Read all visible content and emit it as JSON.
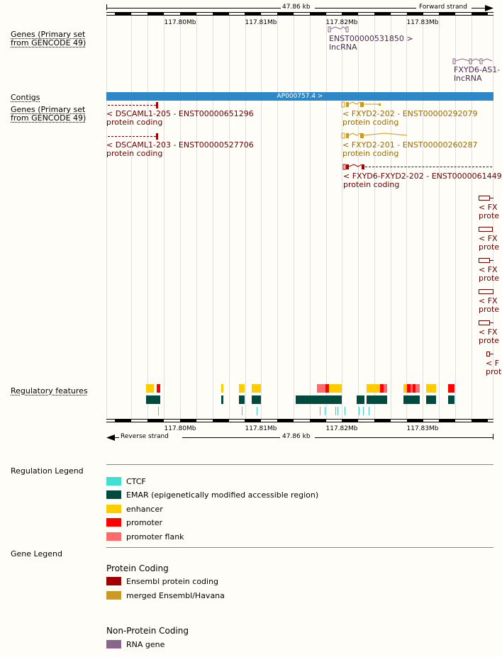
{
  "top_ruler": {
    "length_label": "47.86 kb",
    "strand_label": "Forward strand"
  },
  "bottom_ruler": {
    "length_label": "47.86 kb",
    "strand_label": "Reverse strand"
  },
  "scale_labels": [
    "117.80Mb",
    "117.81Mb",
    "117.82Mb",
    "117.83Mb"
  ],
  "tracks": {
    "genes_top": "Genes (Primary set\nfrom GENCODE 49)",
    "contigs": "Contigs",
    "genes_bottom": "Genes (Primary set\nfrom GENCODE 49)",
    "regulatory": "Regulatory features"
  },
  "contig": {
    "label": "AP000757.4 >"
  },
  "forward_genes": [
    {
      "name": "ENST00000531850 >",
      "biotype": "lncRNA"
    },
    {
      "name": "FXYD6-AS1-",
      "biotype": "lncRNA"
    }
  ],
  "reverse_genes": [
    {
      "name": "< DSCAML1-205 - ENST00000651296",
      "biotype": "protein coding"
    },
    {
      "name": "< DSCAML1-203 - ENST00000527706",
      "biotype": "protein coding"
    },
    {
      "name": "< FXYD2-202 - ENST00000292079",
      "biotype": "protein coding"
    },
    {
      "name": "< FXYD2-201 - ENST00000260287",
      "biotype": "protein coding"
    },
    {
      "name": "< FXYD6-FXYD2-202 - ENST0000061449",
      "biotype": "protein coding"
    }
  ],
  "truncated_genes": [
    {
      "name": "< FX",
      "biotype": "prote"
    },
    {
      "name": "< FX",
      "biotype": "prote"
    },
    {
      "name": "< FX",
      "biotype": "prote"
    },
    {
      "name": "< FX",
      "biotype": "prote"
    },
    {
      "name": "< FX",
      "biotype": "prote"
    },
    {
      "name": "< F",
      "biotype": "prot"
    }
  ],
  "legend": {
    "regulation_title": "Regulation Legend",
    "regulation_items": [
      {
        "label": "CTCF",
        "color": "#40e0d0"
      },
      {
        "label": "EMAR (epigenetically modified accessible region)",
        "color": "#004b3d"
      },
      {
        "label": "enhancer",
        "color": "#ffcc00"
      },
      {
        "label": "promoter",
        "color": "#ff0000"
      },
      {
        "label": "promoter flank",
        "color": "#ff6a6a"
      }
    ],
    "gene_title": "Gene Legend",
    "protein_coding_title": "Protein Coding",
    "protein_items": [
      {
        "label": "Ensembl protein coding",
        "color": "#a00000"
      },
      {
        "label": "merged Ensembl/Havana",
        "color": "#cc9922"
      }
    ],
    "non_protein_title": "Non-Protein Coding",
    "non_protein_items": [
      {
        "label": "RNA gene",
        "color": "#8b668b"
      }
    ]
  }
}
